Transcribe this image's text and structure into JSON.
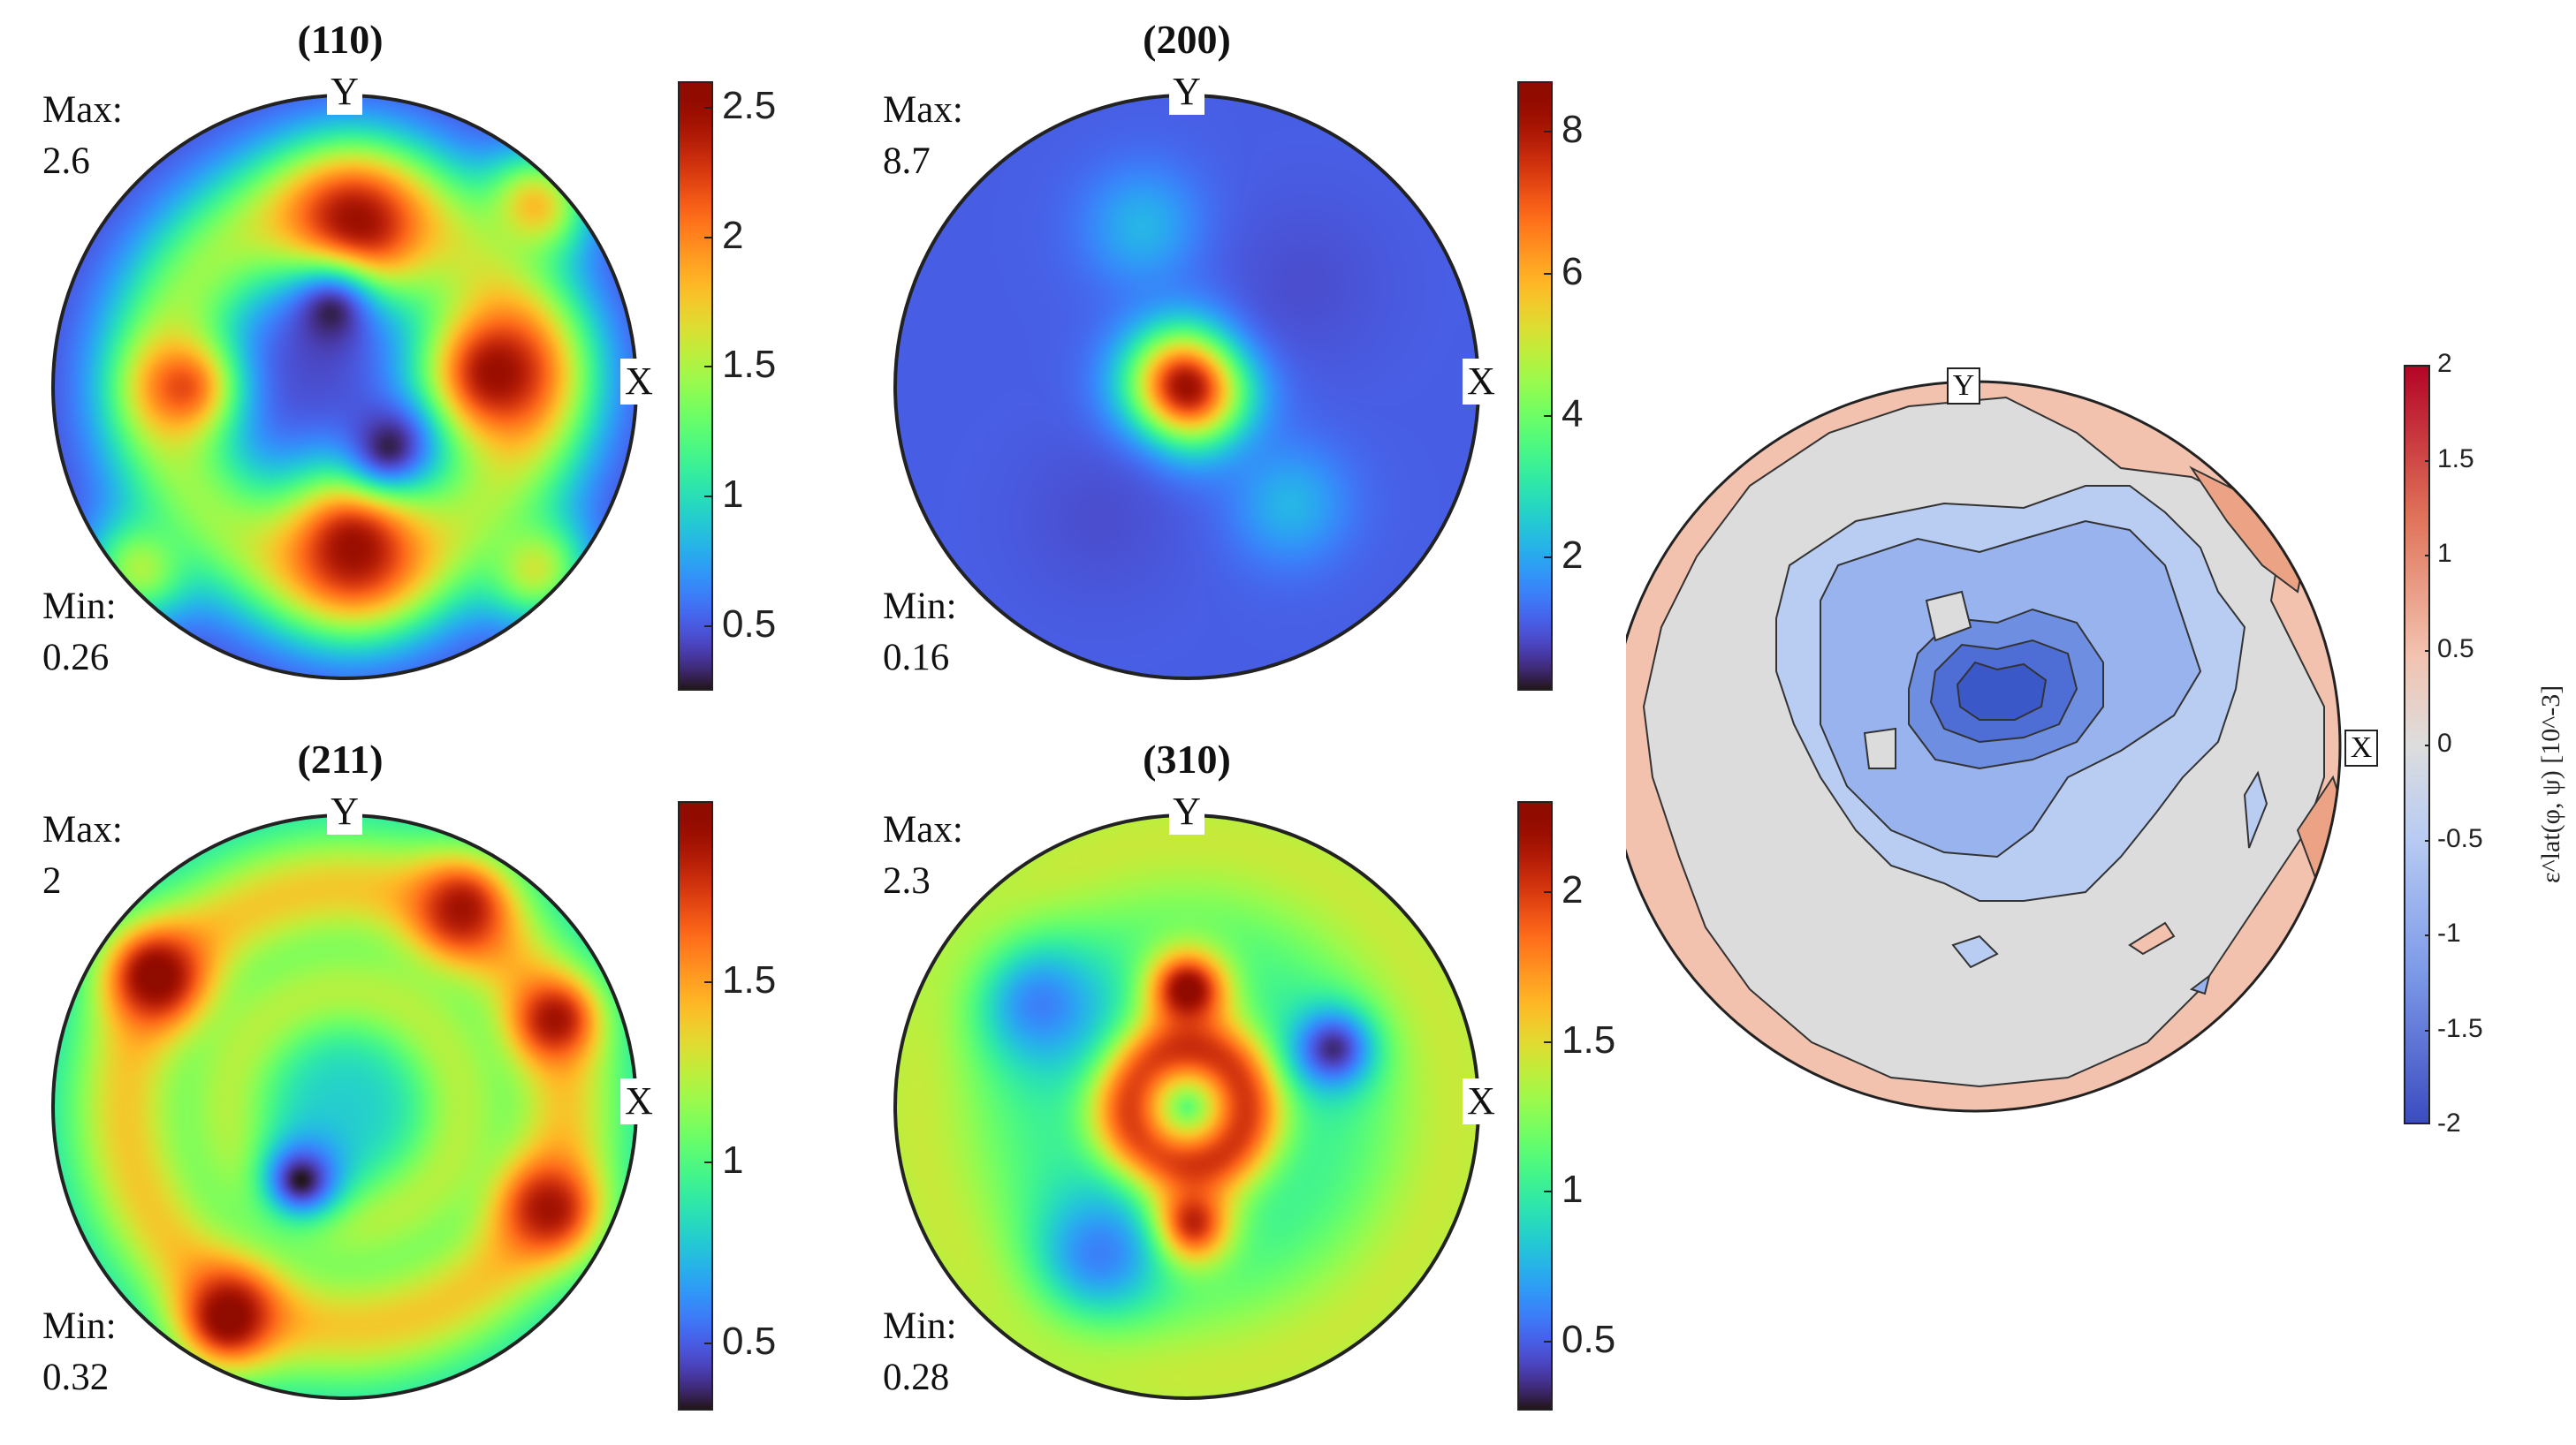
{
  "chart_data": [
    {
      "type": "heatmap",
      "title": "(110)",
      "axis_labels": {
        "x": "X",
        "y": "Y"
      },
      "stats": {
        "max_label": "Max:",
        "max_value": "2.6",
        "min_label": "Min:",
        "min_value": "0.26"
      },
      "colorbar": {
        "ticks": [
          "0.5",
          "1",
          "1.5",
          "2",
          "2.5"
        ],
        "tick_values": [
          0.5,
          1,
          1.5,
          2,
          2.5
        ],
        "range": [
          0.26,
          2.6
        ],
        "colormap": "turbo"
      },
      "features": [
        {
          "kind": "ring",
          "r": 0.63,
          "width": 0.16,
          "value": 1.6
        },
        {
          "kind": "spot",
          "x": 0.03,
          "y": 0.53,
          "r": 0.18,
          "value": 2.6
        },
        {
          "kind": "spot",
          "x": 0.03,
          "y": -0.55,
          "r": 0.18,
          "value": 2.5
        },
        {
          "kind": "spot",
          "x": 0.52,
          "y": 0.05,
          "r": 0.18,
          "value": 2.5
        },
        {
          "kind": "spot",
          "x": -0.56,
          "y": 0.0,
          "r": 0.12,
          "value": 2.2
        },
        {
          "kind": "spot",
          "x": -0.05,
          "y": 0.25,
          "r": 0.13,
          "value": 0.3
        },
        {
          "kind": "spot",
          "x": 0.15,
          "y": -0.2,
          "r": 0.1,
          "value": 0.3
        },
        {
          "kind": "spot",
          "x": 0.65,
          "y": 0.62,
          "r": 0.12,
          "value": 1.8
        },
        {
          "kind": "spot",
          "x": -0.7,
          "y": -0.62,
          "r": 0.12,
          "value": 1.5
        },
        {
          "kind": "spot",
          "x": 0.65,
          "y": -0.62,
          "r": 0.12,
          "value": 1.6
        }
      ],
      "background": 0.45
    },
    {
      "type": "heatmap",
      "title": "(200)",
      "axis_labels": {
        "x": "X",
        "y": "Y"
      },
      "stats": {
        "max_label": "Max:",
        "max_value": "8.7",
        "min_label": "Min:",
        "min_value": "0.16"
      },
      "colorbar": {
        "ticks": [
          "2",
          "4",
          "6",
          "8"
        ],
        "tick_values": [
          2,
          4,
          6,
          8
        ],
        "range": [
          0.16,
          8.7
        ],
        "colormap": "turbo"
      },
      "features": [
        {
          "kind": "spot",
          "x": 0.0,
          "y": 0.0,
          "r": 0.14,
          "value": 8.7
        },
        {
          "kind": "spot",
          "x": -0.15,
          "y": 0.55,
          "r": 0.14,
          "value": 2.2
        },
        {
          "kind": "spot",
          "x": 0.35,
          "y": -0.4,
          "r": 0.14,
          "value": 2.2
        },
        {
          "kind": "spot",
          "x": -0.3,
          "y": -0.45,
          "r": 0.2,
          "value": 0.9
        },
        {
          "kind": "spot",
          "x": 0.4,
          "y": 0.35,
          "r": 0.2,
          "value": 0.9
        }
      ],
      "background": 1.1
    },
    {
      "type": "heatmap",
      "title": "(211)",
      "axis_labels": {
        "x": "X",
        "y": "Y"
      },
      "stats": {
        "max_label": "Max:",
        "max_value": "2",
        "min_label": "Min:",
        "min_value": "0.32"
      },
      "colorbar": {
        "ticks": [
          "0.5",
          "1",
          "1.5"
        ],
        "tick_values": [
          0.5,
          1,
          1.5
        ],
        "range": [
          0.32,
          2.0
        ],
        "colormap": "turbo"
      },
      "features": [
        {
          "kind": "ring",
          "r": 0.75,
          "width": 0.14,
          "value": 1.5
        },
        {
          "kind": "ring",
          "r": 0.4,
          "width": 0.12,
          "value": 1.3
        },
        {
          "kind": "spot",
          "x": -0.65,
          "y": 0.45,
          "r": 0.12,
          "value": 2.0
        },
        {
          "kind": "spot",
          "x": 0.4,
          "y": 0.68,
          "r": 0.12,
          "value": 1.9
        },
        {
          "kind": "spot",
          "x": 0.72,
          "y": 0.3,
          "r": 0.1,
          "value": 1.9
        },
        {
          "kind": "spot",
          "x": -0.4,
          "y": -0.72,
          "r": 0.12,
          "value": 2.0
        },
        {
          "kind": "spot",
          "x": 0.7,
          "y": -0.35,
          "r": 0.12,
          "value": 1.9
        },
        {
          "kind": "spot",
          "x": -0.15,
          "y": -0.25,
          "r": 0.1,
          "value": 0.32
        }
      ],
      "background": 0.8
    },
    {
      "type": "heatmap",
      "title": "(310)",
      "axis_labels": {
        "x": "X",
        "y": "Y"
      },
      "stats": {
        "max_label": "Max:",
        "max_value": "2.3",
        "min_label": "Min:",
        "min_value": "0.28"
      },
      "colorbar": {
        "ticks": [
          "0.5",
          "1",
          "1.5",
          "2"
        ],
        "tick_values": [
          0.5,
          1,
          1.5,
          2
        ],
        "range": [
          0.28,
          2.3
        ],
        "colormap": "turbo"
      },
      "features": [
        {
          "kind": "ring",
          "r": 0.2,
          "width": 0.1,
          "value": 2.2
        },
        {
          "kind": "ring",
          "r": 0.92,
          "width": 0.2,
          "value": 1.5
        },
        {
          "kind": "spot",
          "x": 0.0,
          "y": 0.4,
          "r": 0.1,
          "value": 2.3
        },
        {
          "kind": "spot",
          "x": 0.0,
          "y": -0.4,
          "r": 0.1,
          "value": 2.3
        },
        {
          "kind": "spot",
          "x": 0.5,
          "y": 0.2,
          "r": 0.1,
          "value": 0.35
        },
        {
          "kind": "spot",
          "x": -0.5,
          "y": 0.35,
          "r": 0.16,
          "value": 0.6
        },
        {
          "kind": "spot",
          "x": -0.3,
          "y": -0.5,
          "r": 0.16,
          "value": 0.6
        }
      ],
      "background": 1.0
    },
    {
      "type": "heatmap",
      "title": "",
      "axis_labels": {
        "x": "X",
        "y": "Y"
      },
      "colorbar": {
        "label": "ε^lat(φ, ψ) [10^-3]",
        "ticks": [
          "2",
          "1.5",
          "1",
          "0.5",
          "0",
          "-0.5",
          "-1",
          "-1.5",
          "-2"
        ],
        "tick_values": [
          2,
          1.5,
          1,
          0.5,
          0,
          -0.5,
          -1,
          -1.5,
          -2
        ],
        "range": [
          -2,
          2
        ],
        "colormap": "diverging-blue-red"
      },
      "contour_levels": [
        0.5,
        0,
        -0.5,
        -1,
        -1.5,
        -2
      ]
    }
  ],
  "colors": {
    "diverging_neg": "#3b4cc0",
    "diverging_zero": "#dddddd",
    "diverging_pos": "#b40426",
    "outline": "#222222"
  }
}
